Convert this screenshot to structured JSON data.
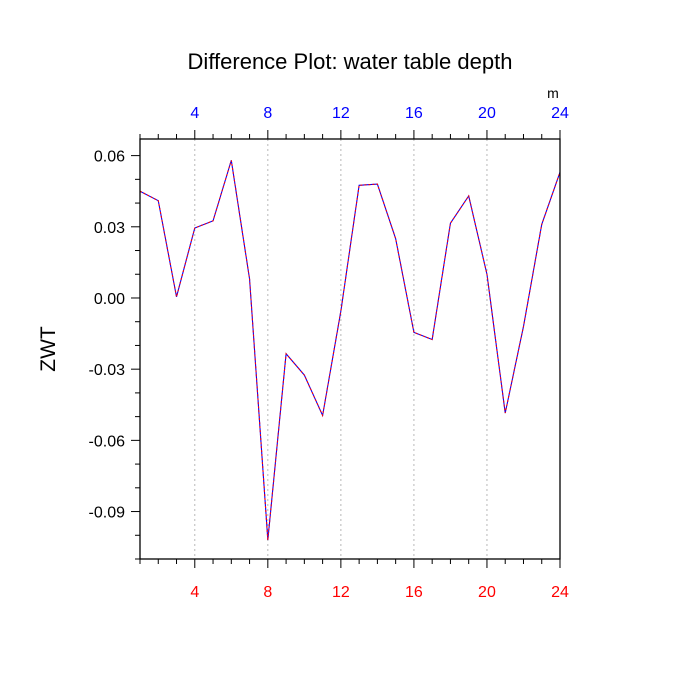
{
  "chart_data": {
    "type": "line",
    "title": "Difference Plot: water table depth",
    "ylabel": "ZWT",
    "xlabel": "",
    "top_axis_unit": "m",
    "xlim": [
      1,
      24
    ],
    "ylim": [
      -0.11,
      0.067
    ],
    "x": [
      1,
      2,
      3,
      4,
      5,
      6,
      7,
      8,
      9,
      10,
      11,
      12,
      13,
      14,
      15,
      16,
      17,
      18,
      19,
      20,
      21,
      22,
      23,
      24
    ],
    "series": [
      {
        "values": [
          0.045,
          0.041,
          0.0005,
          0.0295,
          0.0325,
          0.058,
          0.008,
          -0.102,
          -0.0235,
          -0.0325,
          -0.0495,
          -0.0055,
          0.0475,
          0.048,
          0.025,
          -0.0145,
          -0.0175,
          0.0315,
          0.043,
          0.01,
          -0.0485,
          -0.012,
          0.031,
          0.053
        ]
      }
    ],
    "bottom_x_ticks": [
      "4",
      "8",
      "12",
      "16",
      "20",
      "24"
    ],
    "top_x_ticks": [
      "4",
      "8",
      "12",
      "16",
      "20",
      "24"
    ],
    "x_tick_values": [
      4,
      8,
      12,
      16,
      20,
      24
    ],
    "y_ticks": [
      "0.06",
      "0.03",
      "0.00",
      "-0.03",
      "-0.06",
      "-0.09"
    ],
    "y_tick_values": [
      0.06,
      0.03,
      0.0,
      -0.03,
      -0.06,
      -0.09
    ],
    "grid": "vertical dotted at x ticks",
    "colors": {
      "line_base": "#0000ff",
      "line_dash": "#ff0000",
      "bottom_tick_labels": "#ff0000",
      "top_tick_labels": "#0000ff",
      "frame": "#000000",
      "grid": "#b8b8b8"
    }
  }
}
